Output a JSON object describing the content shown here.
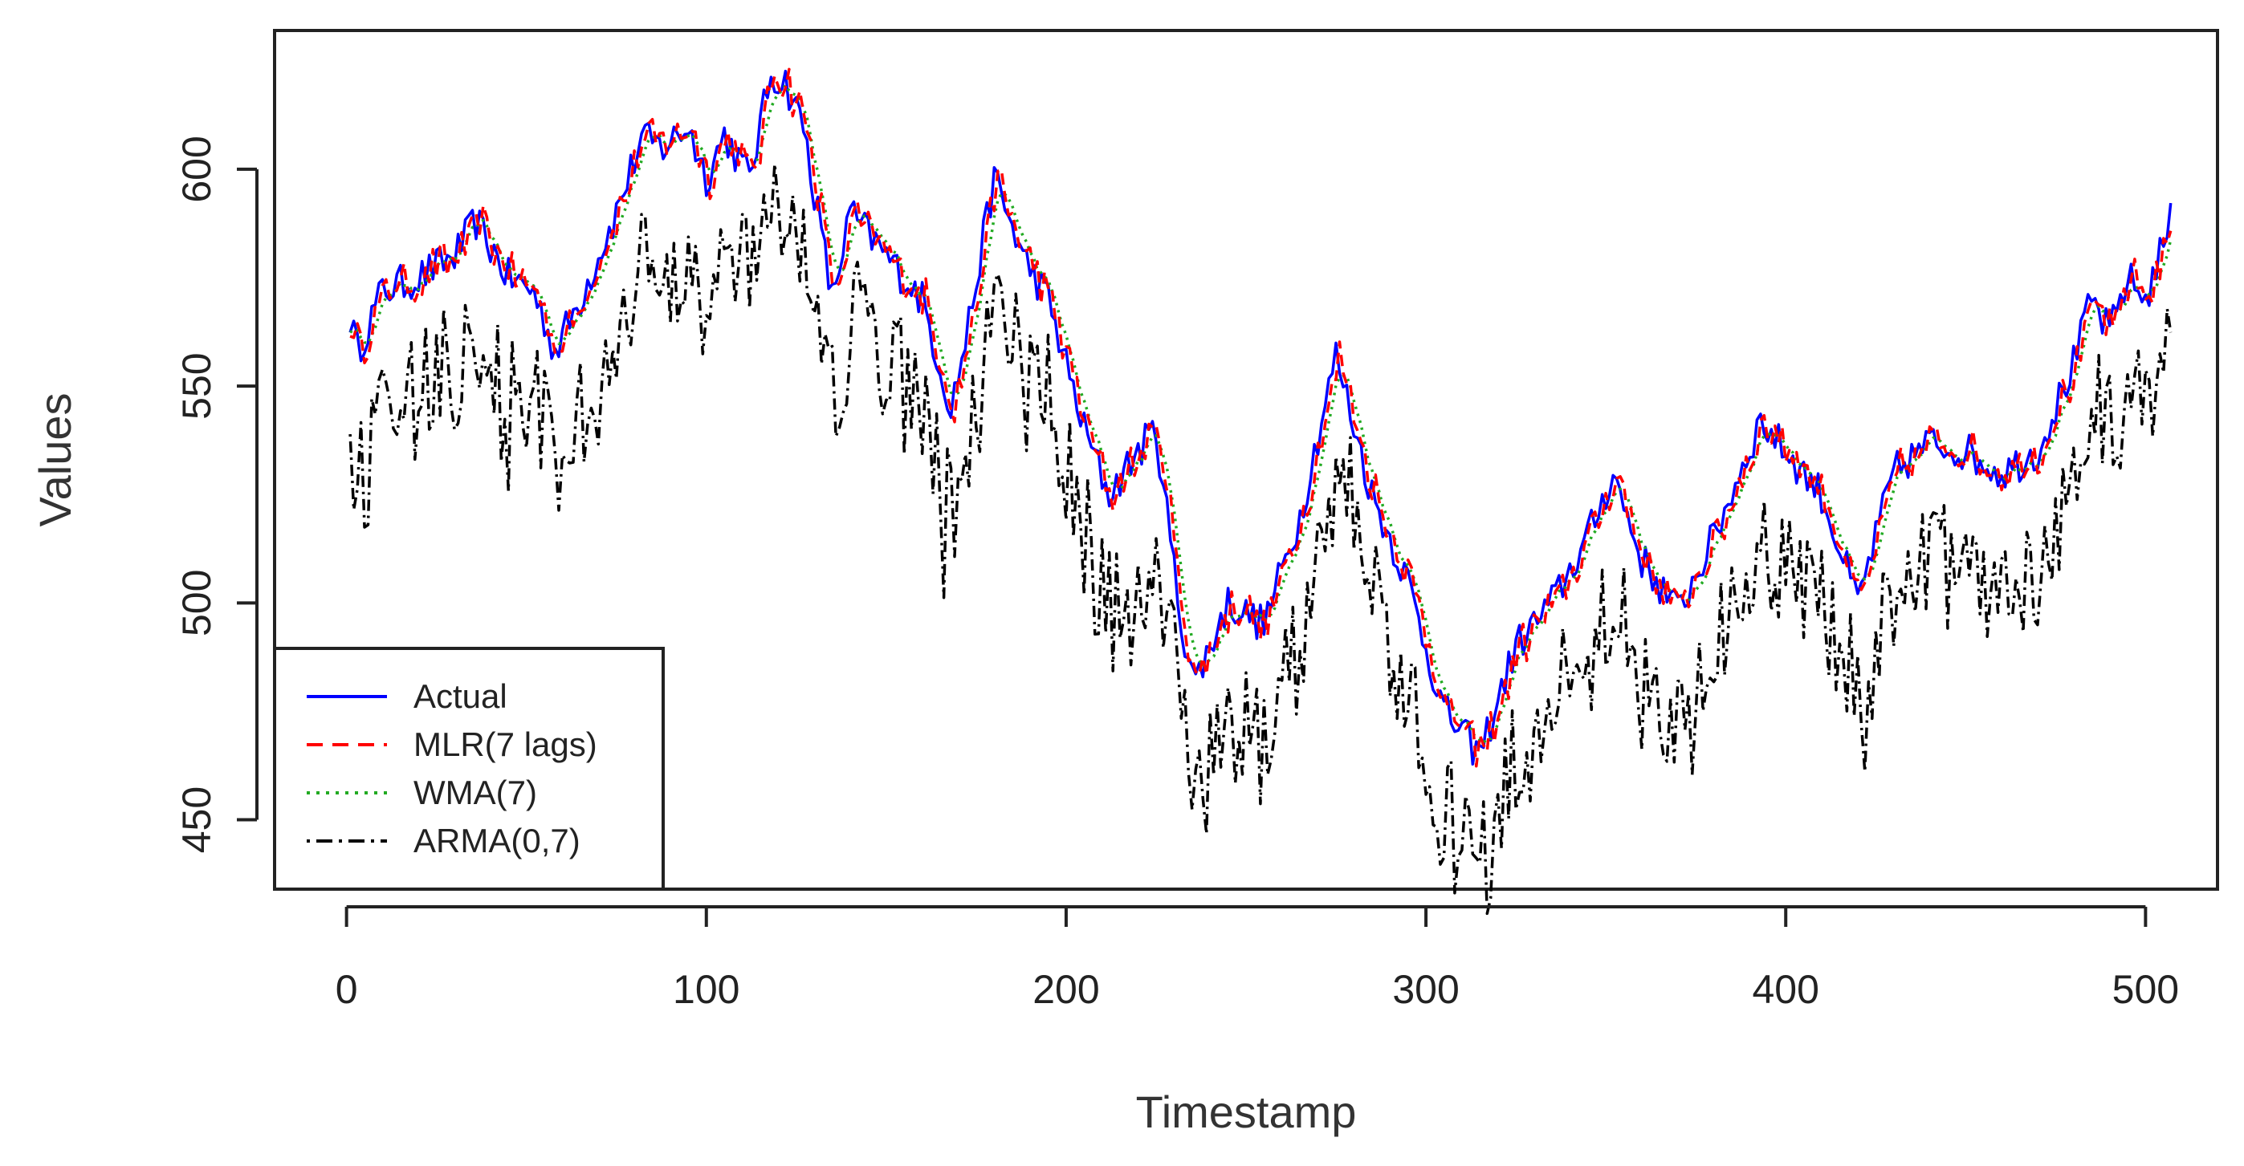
{
  "chart_data": {
    "type": "line",
    "title": "",
    "xlabel": "Timestamp",
    "ylabel": "Values",
    "xlim": [
      -20,
      520
    ],
    "ylim": [
      434,
      632
    ],
    "xticks": [
      0,
      100,
      200,
      300,
      400,
      500
    ],
    "yticks": [
      450,
      500,
      550,
      600
    ],
    "grid": false,
    "legend_position": "bottom-left",
    "series": [
      {
        "name": "Actual",
        "color": "#0000ff",
        "dash": "solid"
      },
      {
        "name": "MLR(7 lags)",
        "color": "#ff0000",
        "dash": "dashed"
      },
      {
        "name": "WMA(7)",
        "color": "#22aa22",
        "dash": "dotted"
      },
      {
        "name": "ARMA(0,7)",
        "color": "#000000",
        "dash": "dotdash"
      }
    ],
    "actual_keypoints": {
      "x": [
        1,
        3,
        10,
        20,
        30,
        36,
        45,
        52,
        58,
        65,
        75,
        82,
        88,
        95,
        100,
        105,
        112,
        118,
        122,
        127,
        135,
        140,
        150,
        160,
        168,
        172,
        180,
        188,
        195,
        205,
        212,
        220,
        225,
        232,
        236,
        245,
        255,
        265,
        275,
        285,
        295,
        305,
        315,
        325,
        335,
        345,
        352,
        360,
        370,
        380,
        393,
        400,
        410,
        420,
        430,
        440,
        450,
        460,
        470,
        480,
        485,
        490,
        495,
        500,
        507
      ],
      "y": [
        566,
        558,
        572,
        575,
        580,
        588,
        575,
        572,
        558,
        570,
        590,
        607,
        605,
        610,
        598,
        608,
        598,
        622,
        620,
        610,
        570,
        590,
        580,
        570,
        545,
        560,
        598,
        580,
        570,
        540,
        525,
        535,
        540,
        495,
        482,
        500,
        495,
        520,
        557,
        525,
        505,
        475,
        465,
        490,
        500,
        515,
        530,
        510,
        498,
        515,
        542,
        535,
        525,
        500,
        530,
        537,
        535,
        530,
        535,
        555,
        570,
        562,
        575,
        570,
        588
      ]
    }
  }
}
